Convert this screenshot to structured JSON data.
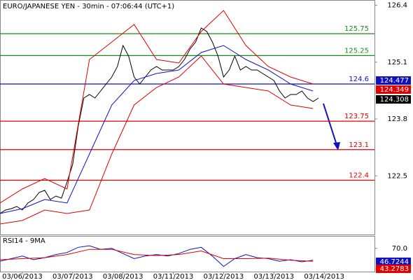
{
  "chart_data": [
    {
      "type": "line",
      "title": "EURO/JAPANESE YEN - 30min - 07:06:44 (UTC+1)",
      "xlim": [
        0,
        67
      ],
      "xticks": [
        {
          "value": 4,
          "label": "03/06/2013"
        },
        {
          "value": 13,
          "label": "03/07/2013"
        },
        {
          "value": 22,
          "label": "03/08/2013"
        },
        {
          "value": 31,
          "label": "03/11/2013"
        },
        {
          "value": 40,
          "label": "03/12/2013"
        },
        {
          "value": 49,
          "label": "03/13/2013"
        },
        {
          "value": 58,
          "label": "03/14/2013"
        }
      ],
      "ylim": [
        121.16,
        126.52
      ],
      "yticks": [
        126.4,
        125.1,
        123.8,
        122.5
      ],
      "levels": [
        125.75,
        125.25,
        124.6,
        123.75,
        123.1,
        122.4
      ],
      "level_colors": [
        "#1a8a1a",
        "#1a8a1a",
        "#1010c0",
        "#e00000",
        "#e00000",
        "#e00000"
      ],
      "series": [
        {
          "color": "#000000",
          "x": [
            0,
            1,
            2,
            3,
            4,
            5,
            6,
            7,
            8,
            9,
            10,
            11,
            12,
            13,
            14,
            15,
            16,
            17,
            18,
            19,
            20,
            21,
            22,
            23,
            24,
            25,
            26,
            27,
            28,
            29,
            30,
            31,
            32,
            33,
            34,
            35,
            36,
            37,
            38,
            39,
            40,
            41,
            42,
            43,
            44,
            45,
            46,
            47,
            48,
            49,
            50,
            51,
            52,
            53,
            54,
            55,
            56,
            57
          ],
          "values": [
            121.64,
            121.72,
            121.75,
            121.8,
            121.72,
            121.88,
            121.96,
            122.12,
            122.17,
            121.96,
            122.04,
            121.99,
            122.36,
            122.76,
            123.64,
            124.28,
            124.36,
            124.28,
            124.44,
            124.6,
            124.76,
            125.0,
            125.48,
            125.24,
            124.76,
            124.6,
            124.76,
            124.92,
            125.0,
            124.92,
            124.92,
            124.92,
            125.0,
            125.16,
            125.4,
            125.56,
            125.88,
            125.8,
            125.56,
            125.24,
            124.76,
            124.92,
            125.24,
            124.92,
            125.0,
            124.92,
            124.92,
            124.84,
            124.76,
            124.68,
            124.44,
            124.28,
            124.36,
            124.36,
            124.44,
            124.28,
            124.2,
            124.28
          ]
        },
        {
          "color": "#e00000",
          "x": [
            0,
            4,
            8,
            12,
            16,
            20,
            24,
            28,
            32,
            36,
            40,
            44,
            48,
            52,
            56
          ],
          "values": [
            121.88,
            122.2,
            122.44,
            122.2,
            125.16,
            125.56,
            125.96,
            125.16,
            125.08,
            125.8,
            126.28,
            125.48,
            125.0,
            124.76,
            124.6
          ]
        },
        {
          "color": "#e00000",
          "x": [
            0,
            4,
            8,
            12,
            16,
            20,
            24,
            28,
            32,
            36,
            40,
            44,
            48,
            52,
            56
          ],
          "values": [
            121.4,
            121.48,
            121.72,
            121.64,
            121.72,
            123.0,
            124.12,
            124.52,
            124.76,
            125.24,
            124.6,
            124.52,
            124.44,
            124.12,
            124.04
          ]
        },
        {
          "color": "#1010c0",
          "x": [
            0,
            4,
            8,
            12,
            16,
            20,
            24,
            28,
            32,
            36,
            40,
            44,
            48,
            52,
            56
          ],
          "values": [
            121.64,
            121.75,
            121.96,
            121.88,
            123.0,
            124.12,
            124.68,
            124.84,
            124.92,
            125.32,
            125.48,
            125.16,
            124.92,
            124.6,
            124.44
          ]
        }
      ],
      "last_values": [
        124.477,
        124.349,
        124.308
      ],
      "last_colors": [
        "#1010c0",
        "#e00000",
        "#000000"
      ]
    },
    {
      "type": "line",
      "title": "RSI14 - 9MA",
      "xlim": [
        0,
        67
      ],
      "ylim": [
        25,
        90
      ],
      "yticks": [
        {
          "value": 70,
          "label": "70.0"
        }
      ],
      "series": [
        {
          "color": "#1010c0",
          "x": [
            0,
            2,
            4,
            6,
            8,
            10,
            12,
            14,
            16,
            18,
            20,
            22,
            24,
            26,
            28,
            30,
            32,
            34,
            36,
            38,
            40,
            42,
            44,
            46,
            48,
            50,
            52,
            54,
            56
          ],
          "values": [
            45,
            50,
            55,
            48,
            52,
            58,
            62,
            72,
            75,
            68,
            70,
            60,
            50,
            55,
            58,
            55,
            60,
            68,
            72,
            55,
            35,
            50,
            58,
            52,
            50,
            45,
            48,
            44,
            47
          ]
        },
        {
          "color": "#e00000",
          "x": [
            0,
            4,
            8,
            12,
            16,
            20,
            24,
            28,
            32,
            36,
            40,
            44,
            48,
            52,
            56
          ],
          "values": [
            48,
            50,
            52,
            58,
            68,
            68,
            58,
            56,
            58,
            65,
            50,
            50,
            51,
            47,
            45
          ]
        }
      ],
      "last_values": [
        46.7244,
        43.2783
      ],
      "last_colors": [
        "#1010c0",
        "#e00000"
      ]
    }
  ]
}
